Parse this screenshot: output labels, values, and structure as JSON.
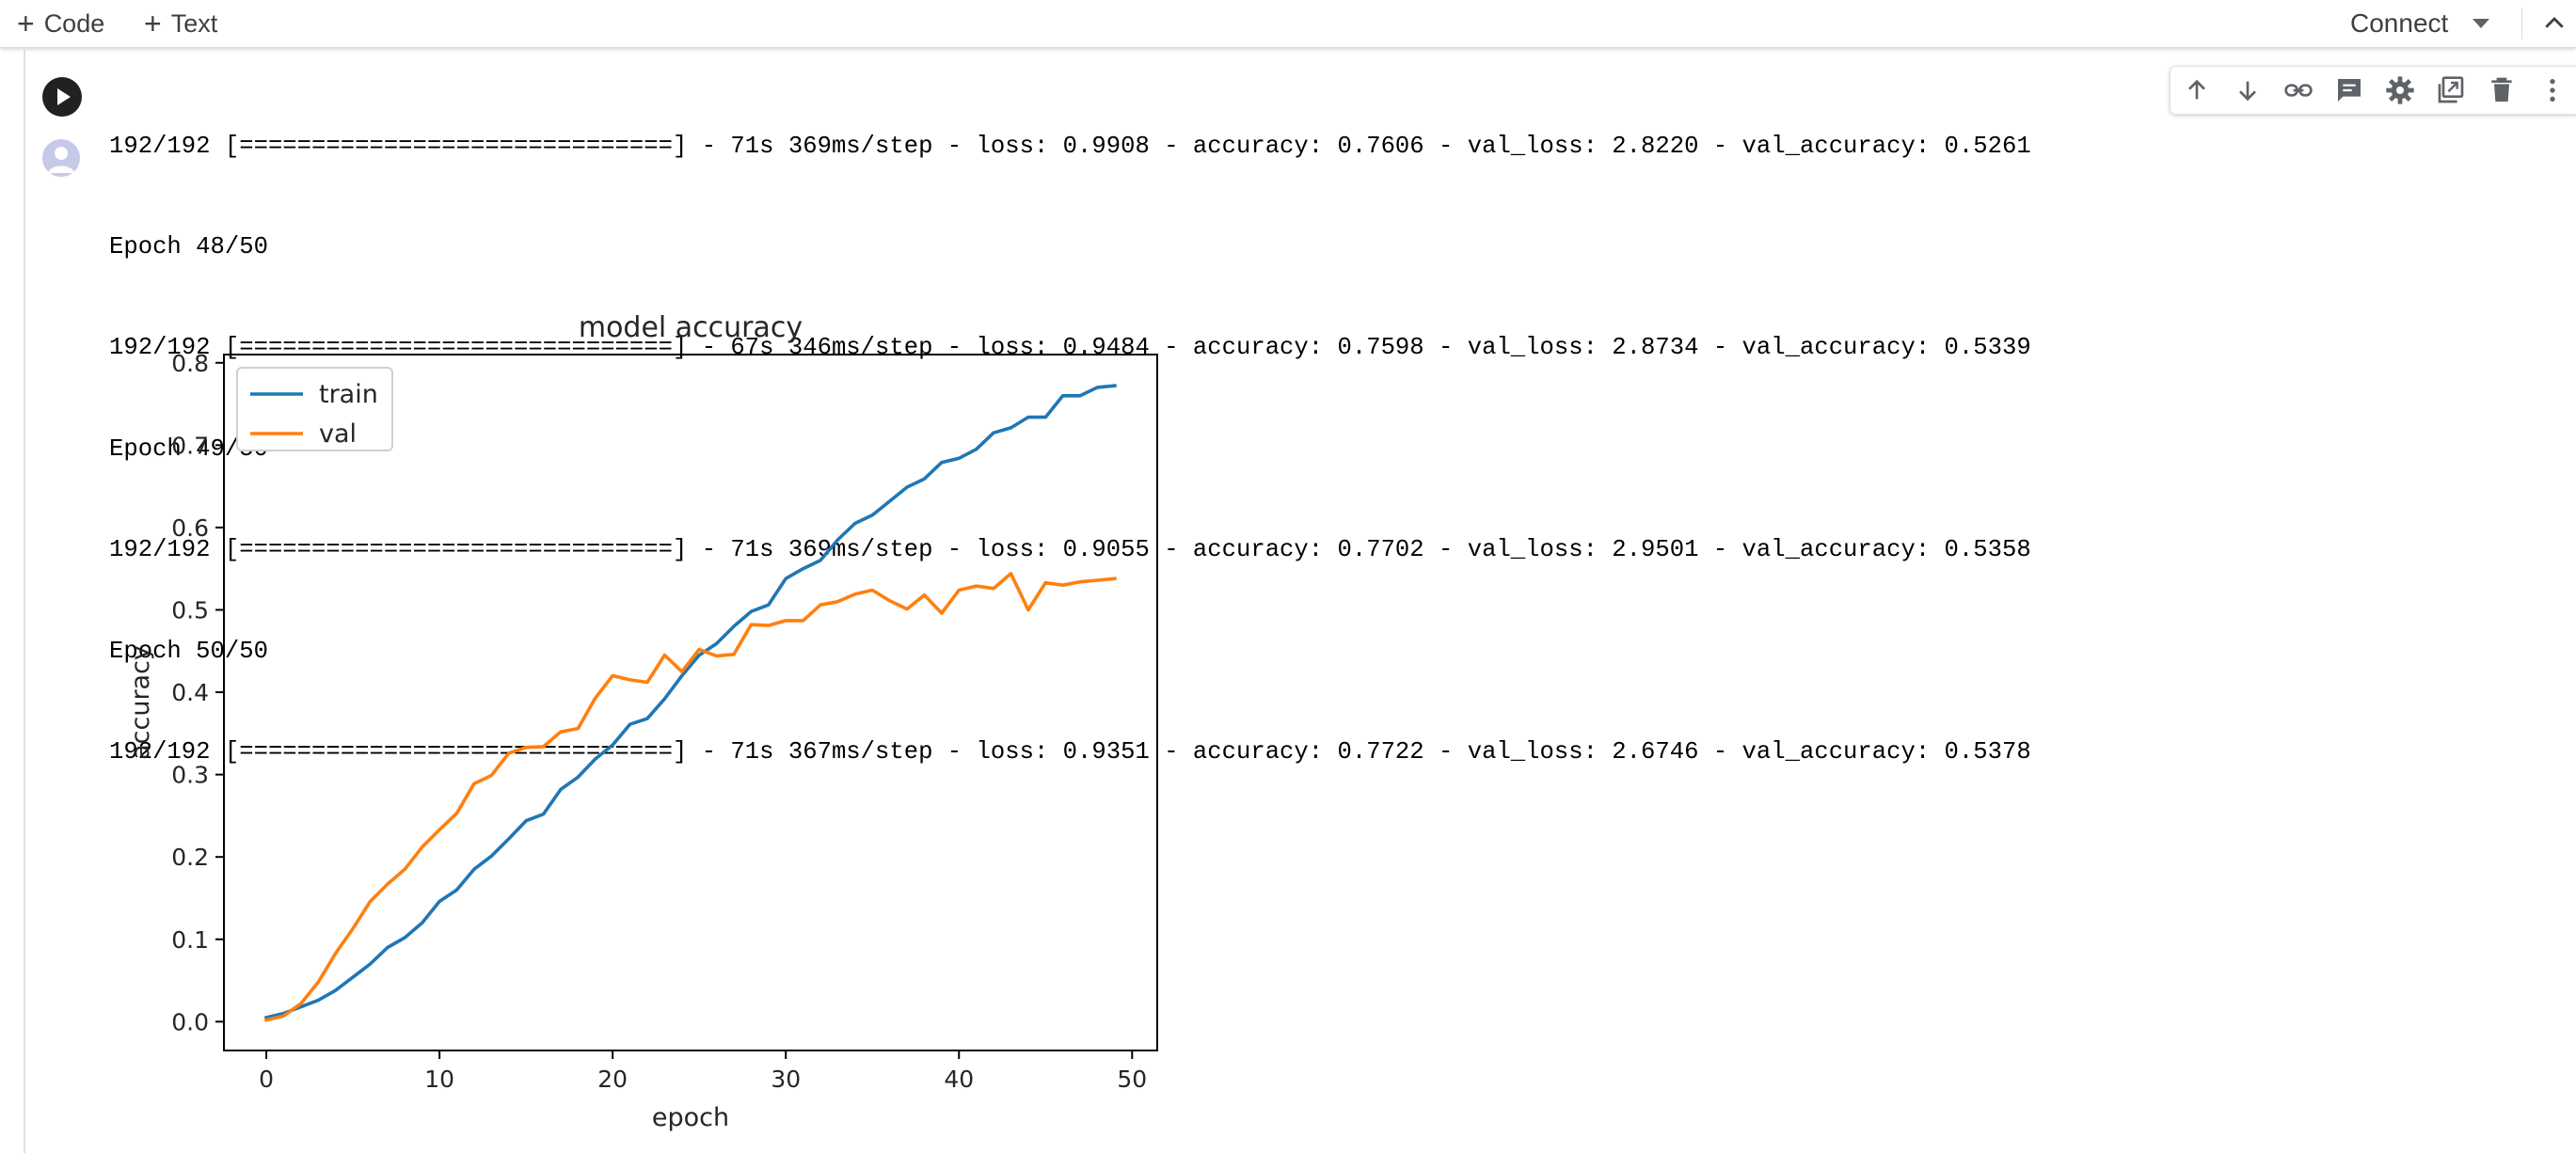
{
  "toolbar": {
    "code_label": "Code",
    "text_label": "Text",
    "connect_label": "Connect"
  },
  "output_lines": [
    "192/192 [==============================] - 71s 369ms/step - loss: 0.9908 - accuracy: 0.7606 - val_loss: 2.8220 - val_accuracy: 0.5261",
    "Epoch 48/50",
    "192/192 [==============================] - 67s 346ms/step - loss: 0.9484 - accuracy: 0.7598 - val_loss: 2.8734 - val_accuracy: 0.5339",
    "Epoch 49/50",
    "192/192 [==============================] - 71s 369ms/step - loss: 0.9055 - accuracy: 0.7702 - val_loss: 2.9501 - val_accuracy: 0.5358",
    "Epoch 50/50",
    "192/192 [==============================] - 71s 367ms/step - loss: 0.9351 - accuracy: 0.7722 - val_loss: 2.6746 - val_accuracy: 0.5378"
  ],
  "cell_toolbar_icons": [
    "arrow-up-icon",
    "arrow-down-icon",
    "link-icon",
    "comment-icon",
    "gear-icon",
    "mirror-cell-icon",
    "trash-icon",
    "more-vert-icon"
  ],
  "chart_data": {
    "type": "line",
    "title": "model accuracy",
    "xlabel": "epoch",
    "ylabel": "accuracy",
    "xlim": [
      -2.45,
      51.45
    ],
    "ylim": [
      -0.035,
      0.81
    ],
    "xticks": [
      0,
      10,
      20,
      30,
      40,
      50
    ],
    "yticks": [
      0.0,
      0.1,
      0.2,
      0.3,
      0.4,
      0.5,
      0.6,
      0.7,
      0.8
    ],
    "grid": false,
    "legend_position": "upper-left",
    "x": [
      0,
      1,
      2,
      3,
      4,
      5,
      6,
      7,
      8,
      9,
      10,
      11,
      12,
      13,
      14,
      15,
      16,
      17,
      18,
      19,
      20,
      21,
      22,
      23,
      24,
      25,
      26,
      27,
      28,
      29,
      30,
      31,
      32,
      33,
      34,
      35,
      36,
      37,
      38,
      39,
      40,
      41,
      42,
      43,
      44,
      45,
      46,
      47,
      48,
      49
    ],
    "series": [
      {
        "name": "train",
        "color": "#1f77b4",
        "values": [
          0.005,
          0.01,
          0.018,
          0.026,
          0.038,
          0.054,
          0.07,
          0.09,
          0.102,
          0.12,
          0.146,
          0.16,
          0.185,
          0.201,
          0.222,
          0.244,
          0.252,
          0.282,
          0.297,
          0.319,
          0.336,
          0.361,
          0.368,
          0.392,
          0.42,
          0.445,
          0.459,
          0.48,
          0.498,
          0.506,
          0.538,
          0.55,
          0.56,
          0.585,
          0.605,
          0.615,
          0.632,
          0.649,
          0.659,
          0.679,
          0.684,
          0.695,
          0.715,
          0.721,
          0.734,
          0.734,
          0.76,
          0.76,
          0.7702,
          0.7722
        ]
      },
      {
        "name": "val",
        "color": "#ff7f0e",
        "values": [
          0.002,
          0.007,
          0.022,
          0.048,
          0.083,
          0.113,
          0.146,
          0.167,
          0.185,
          0.212,
          0.233,
          0.253,
          0.289,
          0.299,
          0.326,
          0.333,
          0.334,
          0.352,
          0.356,
          0.393,
          0.42,
          0.415,
          0.412,
          0.445,
          0.425,
          0.452,
          0.444,
          0.446,
          0.482,
          0.481,
          0.487,
          0.487,
          0.506,
          0.51,
          0.519,
          0.524,
          0.511,
          0.501,
          0.518,
          0.496,
          0.524,
          0.529,
          0.526,
          0.544,
          0.5,
          0.533,
          0.53,
          0.534,
          0.536,
          0.538
        ]
      }
    ]
  }
}
